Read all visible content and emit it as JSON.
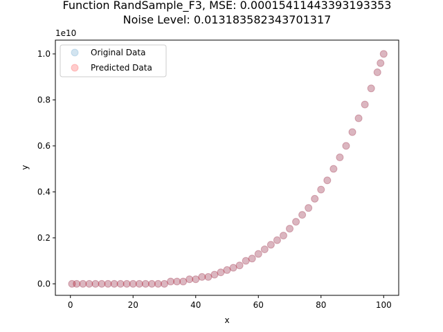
{
  "chart_data": {
    "type": "scatter",
    "title": "Function RandSample_F3, MSE: 0.00015411443393193353",
    "subtitle": "Noise Level: 0.013183582343701317",
    "xlabel": "x",
    "ylabel": "y",
    "offset_text": "1e10",
    "xlim": [
      -4.8,
      104.8
    ],
    "ylim": [
      -0.05,
      1.06
    ],
    "y_scale_factor": 10000000000,
    "xticks": [
      0,
      20,
      40,
      60,
      80,
      100
    ],
    "xtick_labels": [
      "0",
      "20",
      "40",
      "60",
      "80",
      "100"
    ],
    "yticks": [
      0.0,
      0.2,
      0.4,
      0.6,
      0.8,
      1.0
    ],
    "ytick_labels": [
      "0.0",
      "0.2",
      "0.4",
      "0.6",
      "0.8",
      "1.0"
    ],
    "grid": false,
    "legend_position": "upper-left",
    "series": [
      {
        "name": "Original Data",
        "color": "#1f77b4",
        "alpha": 0.2,
        "x": [
          0.5,
          2,
          4,
          6,
          8,
          10,
          12,
          14,
          16,
          18,
          20,
          22,
          24,
          26,
          28,
          30,
          32,
          34,
          36,
          38,
          40,
          42,
          44,
          46,
          48,
          50,
          52,
          54,
          56,
          58,
          60,
          62,
          64,
          66,
          68,
          70,
          72,
          74,
          76,
          78,
          80,
          82,
          84,
          86,
          88,
          90,
          92,
          94,
          96,
          98,
          99,
          100
        ],
        "y": [
          0.0,
          0.0,
          0.0,
          0.0,
          0.0,
          0.0,
          0.0,
          0.0,
          0.0,
          0.0,
          0.0,
          0.0,
          0.0,
          0.0,
          0.0,
          0.0,
          0.01,
          0.01,
          0.01,
          0.02,
          0.02,
          0.03,
          0.03,
          0.04,
          0.05,
          0.06,
          0.07,
          0.08,
          0.1,
          0.11,
          0.13,
          0.15,
          0.17,
          0.19,
          0.21,
          0.24,
          0.27,
          0.3,
          0.33,
          0.37,
          0.41,
          0.45,
          0.5,
          0.55,
          0.6,
          0.66,
          0.72,
          0.78,
          0.85,
          0.92,
          0.96,
          1.0
        ]
      },
      {
        "name": "Predicted Data",
        "color": "#ff0000",
        "alpha": 0.2,
        "x": [
          0.5,
          2,
          4,
          6,
          8,
          10,
          12,
          14,
          16,
          18,
          20,
          22,
          24,
          26,
          28,
          30,
          32,
          34,
          36,
          38,
          40,
          42,
          44,
          46,
          48,
          50,
          52,
          54,
          56,
          58,
          60,
          62,
          64,
          66,
          68,
          70,
          72,
          74,
          76,
          78,
          80,
          82,
          84,
          86,
          88,
          90,
          92,
          94,
          96,
          98,
          99,
          100
        ],
        "y": [
          0.0,
          0.0,
          0.0,
          0.0,
          0.0,
          0.0,
          0.0,
          0.0,
          0.0,
          0.0,
          0.0,
          0.0,
          0.0,
          0.0,
          0.0,
          0.0,
          0.01,
          0.01,
          0.01,
          0.02,
          0.02,
          0.03,
          0.03,
          0.04,
          0.05,
          0.06,
          0.07,
          0.08,
          0.1,
          0.11,
          0.13,
          0.15,
          0.17,
          0.19,
          0.21,
          0.24,
          0.27,
          0.3,
          0.33,
          0.37,
          0.41,
          0.45,
          0.5,
          0.55,
          0.6,
          0.66,
          0.72,
          0.78,
          0.85,
          0.92,
          0.96,
          1.0
        ]
      }
    ]
  }
}
